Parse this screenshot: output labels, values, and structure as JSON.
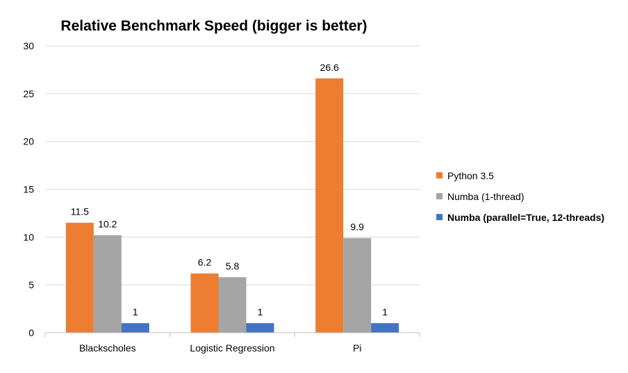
{
  "chart_data": {
    "type": "bar",
    "title": "Relative Benchmark Speed (bigger is better)",
    "xlabel": "",
    "ylabel": "",
    "ylim": [
      0,
      30
    ],
    "yticks": [
      0,
      5,
      10,
      15,
      20,
      25,
      30
    ],
    "grid": true,
    "legend_position": "right",
    "categories": [
      "Blackscholes",
      "Logistic Regression",
      "Pi"
    ],
    "series": [
      {
        "name": "Python 3.5",
        "color": "#ed7d31",
        "values": [
          11.5,
          6.2,
          26.6
        ],
        "labels": [
          "11.5",
          "6.2",
          "26.6"
        ]
      },
      {
        "name": "Numba (1-thread)",
        "color": "#a5a5a5",
        "values": [
          10.2,
          5.8,
          9.9
        ],
        "labels": [
          "10.2",
          "5.8",
          "9.9"
        ]
      },
      {
        "name": "Numba (parallel=True, 12-threads)",
        "color": "#4472c4",
        "values": [
          1,
          1,
          1
        ],
        "labels": [
          "1",
          "1",
          "1"
        ],
        "bold_legend": true
      }
    ]
  }
}
